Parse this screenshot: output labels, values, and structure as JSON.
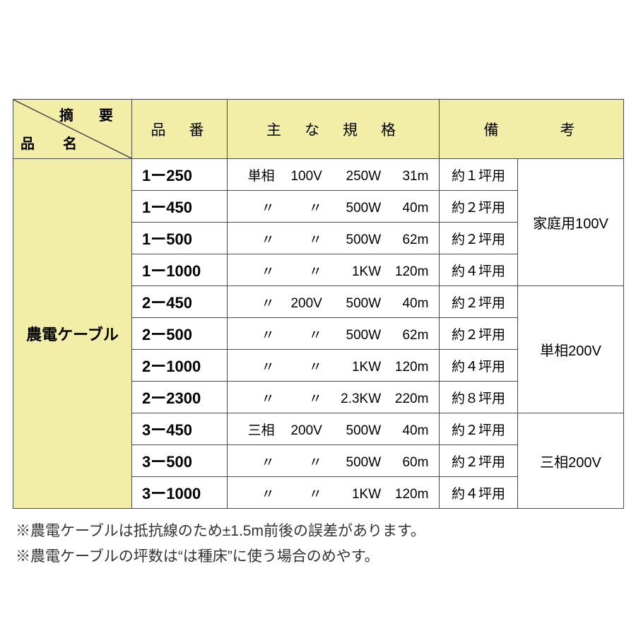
{
  "colors": {
    "header_bg": "#f2eea8",
    "border": "#4a4a4a",
    "page_bg": "#ffffff",
    "text": "#333333"
  },
  "header": {
    "diag_top": "摘　要",
    "diag_bottom": "品　名",
    "num": "品　番",
    "spec": "主　な　規　格",
    "rem": "備　　　考"
  },
  "rowlabel": "農電ケーブル",
  "groups": [
    {
      "remark2": "家庭用100V",
      "rows": [
        {
          "num": "1ー250",
          "phase": "単相",
          "volt": "100V",
          "watt": "250W",
          "len": "31m",
          "rem1": "約１坪用"
        },
        {
          "num": "1ー450",
          "phase": "〃",
          "volt": "〃",
          "watt": "500W",
          "len": "40m",
          "rem1": "約２坪用"
        },
        {
          "num": "1ー500",
          "phase": "〃",
          "volt": "〃",
          "watt": "500W",
          "len": "62m",
          "rem1": "約２坪用"
        },
        {
          "num": "1ー1000",
          "phase": "〃",
          "volt": "〃",
          "watt": "1KW",
          "len": "120m",
          "rem1": "約４坪用"
        }
      ]
    },
    {
      "remark2": "単相200V",
      "rows": [
        {
          "num": "2ー450",
          "phase": "〃",
          "volt": "200V",
          "watt": "500W",
          "len": "40m",
          "rem1": "約２坪用"
        },
        {
          "num": "2ー500",
          "phase": "〃",
          "volt": "〃",
          "watt": "500W",
          "len": "62m",
          "rem1": "約２坪用"
        },
        {
          "num": "2ー1000",
          "phase": "〃",
          "volt": "〃",
          "watt": "1KW",
          "len": "120m",
          "rem1": "約４坪用"
        },
        {
          "num": "2ー2300",
          "phase": "〃",
          "volt": "〃",
          "watt": "2.3KW",
          "len": "220m",
          "rem1": "約８坪用"
        }
      ]
    },
    {
      "remark2": "三相200V",
      "rows": [
        {
          "num": "3ー450",
          "phase": "三相",
          "volt": "200V",
          "watt": "500W",
          "len": "40m",
          "rem1": "約２坪用"
        },
        {
          "num": "3ー500",
          "phase": "〃",
          "volt": "〃",
          "watt": "500W",
          "len": "60m",
          "rem1": "約２坪用"
        },
        {
          "num": "3ー1000",
          "phase": "〃",
          "volt": "〃",
          "watt": "1KW",
          "len": "120m",
          "rem1": "約４坪用"
        }
      ]
    }
  ],
  "notes": [
    "※農電ケーブルは抵抗線のため±1.5m前後の誤差があります。",
    "※農電ケーブルの坪数は“は種床”に使う場合のめやす。"
  ]
}
